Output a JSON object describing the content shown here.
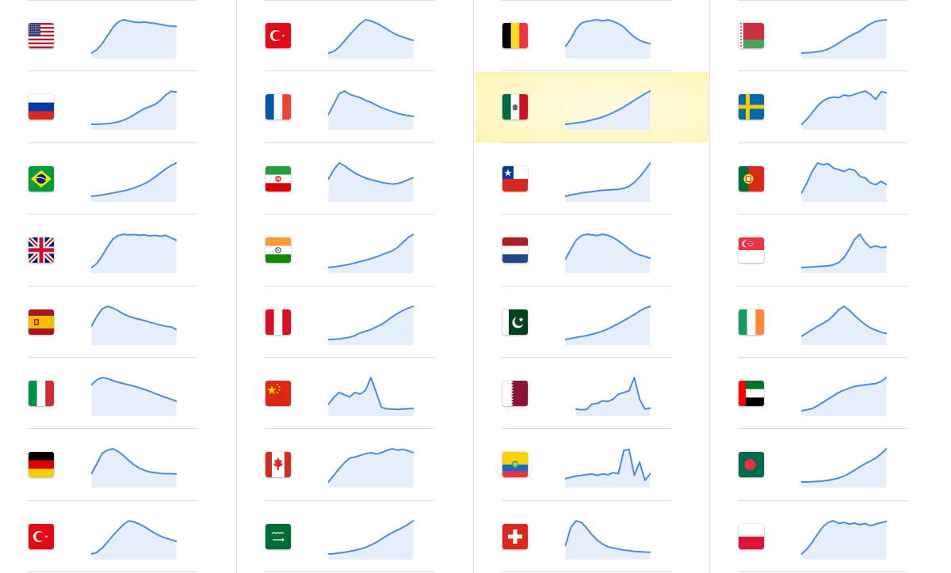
{
  "chart_data": {
    "type": "line",
    "title": "",
    "xlabel": "",
    "ylabel": "",
    "style": "sparkline-grid",
    "columns": [
      {
        "rows": [
          {
            "flag": "united-states-flag",
            "values": [
              0.0,
              0.1,
              0.28,
              0.52,
              0.76,
              0.93,
              1.0,
              0.97,
              0.93,
              0.92,
              0.93,
              0.91,
              0.89,
              0.86,
              0.83,
              0.81,
              0.8
            ]
          },
          {
            "flag": "russia-flag",
            "values": [
              0.0,
              0.0,
              0.01,
              0.02,
              0.04,
              0.07,
              0.12,
              0.19,
              0.28,
              0.38,
              0.47,
              0.53,
              0.6,
              0.72,
              0.88,
              0.99,
              0.97
            ]
          },
          {
            "flag": "brazil-flag",
            "values": [
              0.0,
              0.02,
              0.04,
              0.07,
              0.1,
              0.13,
              0.16,
              0.2,
              0.25,
              0.31,
              0.38,
              0.47,
              0.58,
              0.7,
              0.82,
              0.93,
              1.0
            ]
          },
          {
            "flag": "united-kingdom-flag",
            "values": [
              0.0,
              0.12,
              0.35,
              0.62,
              0.85,
              0.96,
              1.0,
              0.98,
              0.99,
              0.97,
              0.98,
              0.95,
              0.97,
              0.94,
              0.97,
              0.89,
              0.82
            ]
          },
          {
            "flag": "spain-flag",
            "values": [
              0.4,
              0.7,
              0.92,
              1.0,
              0.95,
              0.87,
              0.77,
              0.7,
              0.65,
              0.61,
              0.57,
              0.52,
              0.48,
              0.43,
              0.4,
              0.38,
              0.3
            ]
          },
          {
            "flag": "italy-flag",
            "values": [
              0.78,
              0.93,
              1.0,
              0.97,
              0.91,
              0.86,
              0.82,
              0.78,
              0.74,
              0.69,
              0.64,
              0.58,
              0.52,
              0.46,
              0.4,
              0.35,
              0.29
            ]
          },
          {
            "flag": "germany-flag",
            "values": [
              0.25,
              0.55,
              0.86,
              0.96,
              1.0,
              0.92,
              0.8,
              0.65,
              0.52,
              0.42,
              0.35,
              0.3,
              0.28,
              0.26,
              0.25,
              0.25,
              0.24
            ]
          },
          {
            "flag": "turkey-flag",
            "values": [
              0.0,
              0.05,
              0.18,
              0.36,
              0.55,
              0.72,
              0.88,
              1.0,
              0.97,
              0.9,
              0.82,
              0.72,
              0.62,
              0.54,
              0.48,
              0.43,
              0.38
            ]
          }
        ]
      },
      {
        "rows": [
          {
            "flag": "turkey-flag",
            "values": [
              0.0,
              0.05,
              0.18,
              0.36,
              0.55,
              0.72,
              0.88,
              1.0,
              0.97,
              0.9,
              0.82,
              0.72,
              0.62,
              0.54,
              0.48,
              0.43,
              0.38
            ]
          },
          {
            "flag": "france-flag",
            "values": [
              0.3,
              0.6,
              0.92,
              1.0,
              0.9,
              0.85,
              0.8,
              0.72,
              0.66,
              0.58,
              0.5,
              0.44,
              0.38,
              0.33,
              0.29,
              0.26,
              0.24
            ]
          },
          {
            "flag": "iran-flag",
            "values": [
              0.52,
              0.8,
              1.0,
              0.92,
              0.8,
              0.7,
              0.62,
              0.55,
              0.5,
              0.46,
              0.42,
              0.39,
              0.37,
              0.38,
              0.43,
              0.5,
              0.56
            ]
          },
          {
            "flag": "india-flag",
            "values": [
              0.0,
              0.02,
              0.04,
              0.07,
              0.1,
              0.14,
              0.18,
              0.22,
              0.27,
              0.32,
              0.38,
              0.44,
              0.5,
              0.6,
              0.75,
              0.9,
              1.0
            ]
          },
          {
            "flag": "peru-flag",
            "values": [
              0.0,
              0.01,
              0.02,
              0.04,
              0.07,
              0.12,
              0.2,
              0.25,
              0.3,
              0.38,
              0.45,
              0.56,
              0.68,
              0.78,
              0.87,
              0.94,
              1.0
            ]
          },
          {
            "flag": "china-flag",
            "values": [
              0.2,
              0.4,
              0.55,
              0.48,
              0.42,
              0.55,
              0.5,
              0.62,
              1.0,
              0.55,
              0.1,
              0.06,
              0.05,
              0.04,
              0.05,
              0.06,
              0.07
            ]
          },
          {
            "flag": "canada-flag",
            "values": [
              0.0,
              0.2,
              0.4,
              0.58,
              0.72,
              0.75,
              0.8,
              0.85,
              0.88,
              0.84,
              0.88,
              0.95,
              1.0,
              0.96,
              0.98,
              0.94,
              0.88
            ]
          },
          {
            "flag": "saudi-arabia-flag",
            "values": [
              0.0,
              0.01,
              0.03,
              0.05,
              0.08,
              0.11,
              0.15,
              0.2,
              0.27,
              0.35,
              0.45,
              0.55,
              0.64,
              0.72,
              0.8,
              0.89,
              1.0
            ]
          }
        ]
      },
      {
        "rows": [
          {
            "flag": "belgium-flag",
            "values": [
              0.2,
              0.42,
              0.72,
              0.9,
              0.95,
              0.98,
              1.0,
              0.97,
              1.0,
              0.95,
              0.88,
              0.78,
              0.62,
              0.48,
              0.38,
              0.32,
              0.28
            ]
          },
          {
            "flag": "mexico-flag",
            "values": [
              0.0,
              0.02,
              0.04,
              0.06,
              0.09,
              0.13,
              0.17,
              0.22,
              0.28,
              0.35,
              0.43,
              0.52,
              0.62,
              0.72,
              0.82,
              0.92,
              1.0
            ]
          },
          {
            "flag": "chile-flag",
            "values": [
              0.0,
              0.04,
              0.07,
              0.1,
              0.12,
              0.14,
              0.16,
              0.18,
              0.19,
              0.2,
              0.21,
              0.24,
              0.3,
              0.42,
              0.58,
              0.78,
              1.0
            ]
          },
          {
            "flag": "netherlands-flag",
            "values": [
              0.25,
              0.55,
              0.82,
              0.96,
              1.0,
              0.98,
              0.96,
              1.0,
              0.97,
              0.9,
              0.8,
              0.68,
              0.55,
              0.44,
              0.38,
              0.33,
              0.28
            ]
          },
          {
            "flag": "pakistan-flag",
            "values": [
              0.0,
              0.03,
              0.06,
              0.09,
              0.12,
              0.16,
              0.2,
              0.25,
              0.32,
              0.4,
              0.48,
              0.57,
              0.66,
              0.75,
              0.86,
              0.94,
              1.0
            ]
          },
          {
            "flag": "qatar-flag",
            "values": [
              null,
              null,
              0.05,
              0.03,
              0.04,
              0.2,
              0.22,
              0.3,
              0.28,
              0.35,
              0.5,
              0.55,
              0.6,
              1.0,
              0.35,
              0.05,
              0.08
            ]
          },
          {
            "flag": "ecuador-flag",
            "values": [
              0.1,
              0.14,
              0.18,
              0.2,
              0.22,
              0.24,
              0.2,
              0.24,
              0.22,
              0.28,
              0.25,
              0.95,
              0.98,
              0.2,
              0.6,
              0.05,
              0.25
            ]
          },
          {
            "flag": "switzerland-flag",
            "values": [
              0.25,
              0.8,
              1.0,
              0.95,
              0.78,
              0.58,
              0.42,
              0.3,
              0.22,
              0.18,
              0.15,
              0.12,
              0.1,
              0.08,
              0.07,
              0.06,
              0.05
            ]
          }
        ]
      },
      {
        "rows": [
          {
            "flag": "belarus-flag",
            "values": [
              0.0,
              0.01,
              0.02,
              0.04,
              0.07,
              0.12,
              0.2,
              0.3,
              0.4,
              0.5,
              0.58,
              0.66,
              0.78,
              0.88,
              0.95,
              0.98,
              1.0
            ]
          },
          {
            "flag": "sweden-flag",
            "values": [
              0.0,
              0.15,
              0.35,
              0.55,
              0.7,
              0.78,
              0.82,
              0.8,
              0.88,
              0.85,
              0.9,
              0.95,
              1.0,
              0.9,
              0.75,
              0.98,
              0.95
            ]
          },
          {
            "flag": "portugal-flag",
            "values": [
              0.1,
              0.4,
              0.75,
              1.0,
              0.95,
              0.98,
              0.85,
              0.8,
              0.75,
              0.82,
              0.78,
              0.6,
              0.55,
              0.4,
              0.35,
              0.45,
              0.35
            ]
          },
          {
            "flag": "singapore-flag",
            "values": [
              0.0,
              0.01,
              0.02,
              0.03,
              0.04,
              0.05,
              0.08,
              0.15,
              0.3,
              0.55,
              0.85,
              1.0,
              0.75,
              0.6,
              0.65,
              0.6,
              0.62
            ]
          },
          {
            "flag": "ireland-flag",
            "values": [
              0.1,
              0.2,
              0.3,
              0.4,
              0.48,
              0.58,
              0.72,
              0.9,
              1.0,
              0.88,
              0.72,
              0.58,
              0.45,
              0.35,
              0.28,
              0.22,
              0.18
            ]
          },
          {
            "flag": "united-arab-emirates-flag",
            "values": [
              0.0,
              0.03,
              0.07,
              0.15,
              0.25,
              0.35,
              0.45,
              0.55,
              0.62,
              0.68,
              0.73,
              0.76,
              0.78,
              0.8,
              0.82,
              0.88,
              1.0
            ]
          },
          {
            "flag": "bangladesh-flag",
            "values": [
              0.0,
              0.0,
              0.01,
              0.02,
              0.03,
              0.05,
              0.08,
              0.12,
              0.18,
              0.26,
              0.36,
              0.46,
              0.55,
              0.63,
              0.72,
              0.85,
              1.0
            ]
          },
          {
            "flag": "poland-flag",
            "values": [
              0.0,
              0.15,
              0.35,
              0.6,
              0.82,
              0.95,
              1.0,
              0.92,
              0.95,
              0.9,
              0.93,
              0.88,
              0.92,
              0.85,
              0.9,
              0.94,
              0.98
            ]
          }
        ]
      }
    ]
  },
  "colors": {
    "line": "#4a8de0",
    "fill": "#e6eefb",
    "separator": "#dcdcdc",
    "highlight": "#fff5bf"
  },
  "highlighted": {
    "column": 2,
    "row": 1,
    "flag": "mexico-flag"
  }
}
